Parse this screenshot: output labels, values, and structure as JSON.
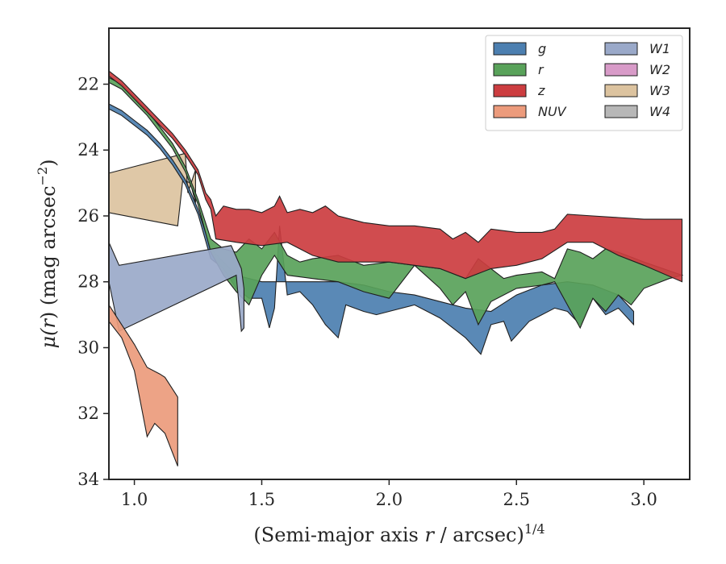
{
  "chart_data": {
    "type": "area",
    "xlabel_main": "(Semi-major axis ",
    "xlabel_var": "r",
    "xlabel_tail": " / arcsec)",
    "xlabel_sup": "1/4",
    "ylabel_main": "μ(",
    "ylabel_var": "r",
    "ylabel_tail": ") (mag arcsec",
    "ylabel_sup": "−2",
    "ylabel_close": ")",
    "xlim": [
      0.9,
      3.18
    ],
    "ylim": [
      34,
      20.3
    ],
    "y_inverted": true,
    "xticks": [
      1.0,
      1.5,
      2.0,
      2.5,
      3.0
    ],
    "xtick_labels": [
      "1.0",
      "1.5",
      "2.0",
      "2.5",
      "3.0"
    ],
    "yticks": [
      22,
      24,
      26,
      28,
      30,
      32,
      34
    ],
    "ytick_labels": [
      "22",
      "24",
      "26",
      "28",
      "30",
      "32",
      "34"
    ],
    "grid": false,
    "legend_position": "top-right",
    "series": [
      {
        "name": "W3",
        "color": "#dcc39f",
        "upper": [
          [
            0.9,
            24.7
          ],
          [
            1.2,
            24.1
          ],
          [
            1.21,
            25.3
          ],
          [
            1.24,
            24.6
          ],
          [
            1.24,
            25.6
          ]
        ],
        "lower": [
          [
            0.9,
            25.9
          ],
          [
            1.17,
            26.3
          ],
          [
            1.19,
            24.9
          ],
          [
            1.22,
            25.0
          ],
          [
            1.24,
            25.6
          ]
        ]
      },
      {
        "name": "g",
        "color": "#4c7fb0",
        "upper": [
          [
            0.9,
            22.6
          ],
          [
            0.95,
            22.8
          ],
          [
            1.0,
            23.1
          ],
          [
            1.05,
            23.4
          ],
          [
            1.1,
            23.8
          ],
          [
            1.15,
            24.3
          ],
          [
            1.2,
            24.9
          ],
          [
            1.25,
            25.8
          ],
          [
            1.3,
            27.0
          ],
          [
            1.35,
            27.4
          ],
          [
            1.4,
            27.8
          ],
          [
            1.5,
            28.0
          ],
          [
            1.6,
            28.0
          ],
          [
            1.8,
            28.0
          ],
          [
            1.9,
            28.1
          ],
          [
            2.0,
            28.3
          ],
          [
            2.1,
            28.4
          ],
          [
            2.2,
            28.6
          ],
          [
            2.3,
            28.8
          ],
          [
            2.4,
            28.9
          ],
          [
            2.5,
            28.4
          ],
          [
            2.6,
            28.1
          ],
          [
            2.7,
            28.0
          ],
          [
            2.8,
            28.1
          ],
          [
            2.9,
            28.4
          ],
          [
            2.96,
            28.9
          ]
        ],
        "lower": [
          [
            0.9,
            22.75
          ],
          [
            0.95,
            22.95
          ],
          [
            1.0,
            23.25
          ],
          [
            1.05,
            23.55
          ],
          [
            1.1,
            23.95
          ],
          [
            1.15,
            24.45
          ],
          [
            1.2,
            25.05
          ],
          [
            1.25,
            25.95
          ],
          [
            1.3,
            27.3
          ],
          [
            1.35,
            27.6
          ],
          [
            1.4,
            28.2
          ],
          [
            1.45,
            28.5
          ],
          [
            1.5,
            28.5
          ],
          [
            1.53,
            29.4
          ],
          [
            1.55,
            28.8
          ],
          [
            1.57,
            26.3
          ],
          [
            1.6,
            28.4
          ],
          [
            1.65,
            28.3
          ],
          [
            1.7,
            28.7
          ],
          [
            1.75,
            29.3
          ],
          [
            1.8,
            29.7
          ],
          [
            1.83,
            28.7
          ],
          [
            1.9,
            28.9
          ],
          [
            1.95,
            29.0
          ],
          [
            2.0,
            28.9
          ],
          [
            2.1,
            28.7
          ],
          [
            2.2,
            29.1
          ],
          [
            2.3,
            29.7
          ],
          [
            2.36,
            30.2
          ],
          [
            2.4,
            29.3
          ],
          [
            2.45,
            29.2
          ],
          [
            2.48,
            29.8
          ],
          [
            2.55,
            29.2
          ],
          [
            2.6,
            29.0
          ],
          [
            2.65,
            28.8
          ],
          [
            2.7,
            28.9
          ],
          [
            2.75,
            29.3
          ],
          [
            2.8,
            28.5
          ],
          [
            2.85,
            29.0
          ],
          [
            2.9,
            28.8
          ],
          [
            2.96,
            29.3
          ]
        ]
      },
      {
        "name": "r",
        "color": "#59a25a",
        "upper": [
          [
            0.9,
            21.8
          ],
          [
            0.95,
            22.0
          ],
          [
            1.0,
            22.4
          ],
          [
            1.05,
            22.8
          ],
          [
            1.1,
            23.3
          ],
          [
            1.15,
            23.8
          ],
          [
            1.2,
            24.5
          ],
          [
            1.25,
            25.5
          ],
          [
            1.3,
            26.7
          ],
          [
            1.35,
            27.0
          ],
          [
            1.4,
            27.1
          ],
          [
            1.45,
            26.7
          ],
          [
            1.5,
            27.0
          ],
          [
            1.55,
            26.5
          ],
          [
            1.6,
            27.2
          ],
          [
            1.65,
            27.4
          ],
          [
            1.7,
            27.3
          ],
          [
            1.8,
            27.2
          ],
          [
            1.9,
            27.5
          ],
          [
            2.0,
            27.4
          ],
          [
            2.1,
            27.5
          ],
          [
            2.2,
            27.6
          ],
          [
            2.3,
            27.9
          ],
          [
            2.35,
            27.3
          ],
          [
            2.4,
            27.6
          ],
          [
            2.45,
            27.9
          ],
          [
            2.5,
            27.8
          ],
          [
            2.6,
            27.7
          ],
          [
            2.65,
            27.9
          ],
          [
            2.7,
            27.0
          ],
          [
            2.75,
            27.1
          ],
          [
            2.8,
            27.3
          ],
          [
            2.85,
            27.0
          ],
          [
            2.9,
            27.1
          ],
          [
            3.0,
            27.4
          ],
          [
            3.15,
            27.8
          ]
        ],
        "lower": [
          [
            0.9,
            21.95
          ],
          [
            0.95,
            22.15
          ],
          [
            1.0,
            22.55
          ],
          [
            1.05,
            22.95
          ],
          [
            1.1,
            23.45
          ],
          [
            1.15,
            23.95
          ],
          [
            1.2,
            24.65
          ],
          [
            1.25,
            25.65
          ],
          [
            1.3,
            27.1
          ],
          [
            1.35,
            27.8
          ],
          [
            1.4,
            28.3
          ],
          [
            1.45,
            28.7
          ],
          [
            1.5,
            27.8
          ],
          [
            1.55,
            27.2
          ],
          [
            1.6,
            27.8
          ],
          [
            1.7,
            27.9
          ],
          [
            1.8,
            28.0
          ],
          [
            1.9,
            28.3
          ],
          [
            2.0,
            28.5
          ],
          [
            2.1,
            27.5
          ],
          [
            2.2,
            28.2
          ],
          [
            2.25,
            28.7
          ],
          [
            2.3,
            28.3
          ],
          [
            2.35,
            29.3
          ],
          [
            2.4,
            28.6
          ],
          [
            2.5,
            28.2
          ],
          [
            2.6,
            28.1
          ],
          [
            2.65,
            28.0
          ],
          [
            2.7,
            28.7
          ],
          [
            2.75,
            29.4
          ],
          [
            2.8,
            28.5
          ],
          [
            2.85,
            28.9
          ],
          [
            2.9,
            28.4
          ],
          [
            2.95,
            28.7
          ],
          [
            3.0,
            28.2
          ],
          [
            3.1,
            27.9
          ],
          [
            3.15,
            27.8
          ]
        ]
      },
      {
        "name": "z",
        "color": "#cc3d40",
        "upper": [
          [
            0.9,
            21.6
          ],
          [
            0.95,
            21.9
          ],
          [
            1.0,
            22.3
          ],
          [
            1.05,
            22.7
          ],
          [
            1.1,
            23.1
          ],
          [
            1.15,
            23.5
          ],
          [
            1.2,
            24.0
          ],
          [
            1.25,
            24.6
          ],
          [
            1.28,
            25.3
          ],
          [
            1.3,
            25.5
          ],
          [
            1.32,
            26.0
          ],
          [
            1.35,
            25.7
          ],
          [
            1.4,
            25.8
          ],
          [
            1.45,
            25.8
          ],
          [
            1.5,
            25.9
          ],
          [
            1.55,
            25.7
          ],
          [
            1.57,
            25.4
          ],
          [
            1.6,
            25.9
          ],
          [
            1.65,
            25.8
          ],
          [
            1.7,
            25.9
          ],
          [
            1.75,
            25.7
          ],
          [
            1.8,
            26.0
          ],
          [
            1.9,
            26.2
          ],
          [
            2.0,
            26.3
          ],
          [
            2.1,
            26.3
          ],
          [
            2.2,
            26.4
          ],
          [
            2.25,
            26.7
          ],
          [
            2.3,
            26.5
          ],
          [
            2.35,
            26.8
          ],
          [
            2.4,
            26.4
          ],
          [
            2.5,
            26.5
          ],
          [
            2.6,
            26.5
          ],
          [
            2.65,
            26.4
          ],
          [
            2.7,
            25.95
          ],
          [
            2.8,
            26.0
          ],
          [
            2.9,
            26.05
          ],
          [
            3.0,
            26.1
          ],
          [
            3.15,
            26.1
          ]
        ],
        "lower": [
          [
            0.9,
            21.75
          ],
          [
            0.95,
            22.05
          ],
          [
            1.0,
            22.45
          ],
          [
            1.05,
            22.85
          ],
          [
            1.1,
            23.25
          ],
          [
            1.15,
            23.65
          ],
          [
            1.2,
            24.15
          ],
          [
            1.25,
            24.75
          ],
          [
            1.28,
            25.5
          ],
          [
            1.3,
            25.8
          ],
          [
            1.32,
            26.7
          ],
          [
            1.4,
            26.8
          ],
          [
            1.5,
            26.9
          ],
          [
            1.6,
            26.8
          ],
          [
            1.7,
            27.2
          ],
          [
            1.8,
            27.4
          ],
          [
            1.9,
            27.4
          ],
          [
            2.0,
            27.4
          ],
          [
            2.1,
            27.5
          ],
          [
            2.2,
            27.6
          ],
          [
            2.3,
            27.9
          ],
          [
            2.4,
            27.6
          ],
          [
            2.5,
            27.5
          ],
          [
            2.6,
            27.3
          ],
          [
            2.7,
            26.8
          ],
          [
            2.8,
            26.8
          ],
          [
            2.9,
            27.2
          ],
          [
            3.0,
            27.5
          ],
          [
            3.15,
            28.0
          ]
        ]
      },
      {
        "name": "W1",
        "color": "#9aa9c9",
        "upper": [
          [
            0.9,
            26.8
          ],
          [
            0.94,
            27.5
          ],
          [
            1.38,
            26.9
          ],
          [
            1.42,
            27.6
          ],
          [
            1.43,
            28.2
          ],
          [
            1.43,
            29.4
          ]
        ],
        "lower": [
          [
            0.9,
            28.0
          ],
          [
            0.94,
            29.5
          ],
          [
            1.4,
            27.8
          ],
          [
            1.42,
            29.5
          ],
          [
            1.43,
            29.4
          ]
        ]
      },
      {
        "name": "NUV",
        "color": "#ec9b7c",
        "upper": [
          [
            0.9,
            28.7
          ],
          [
            0.95,
            29.3
          ],
          [
            1.0,
            29.9
          ],
          [
            1.05,
            30.6
          ],
          [
            1.1,
            30.8
          ],
          [
            1.12,
            30.9
          ],
          [
            1.17,
            31.5
          ],
          [
            1.17,
            33.6
          ]
        ],
        "lower": [
          [
            0.9,
            29.2
          ],
          [
            0.95,
            29.7
          ],
          [
            1.0,
            30.7
          ],
          [
            1.05,
            32.7
          ],
          [
            1.08,
            32.3
          ],
          [
            1.12,
            32.6
          ],
          [
            1.17,
            33.6
          ]
        ]
      }
    ],
    "legend_entries": [
      {
        "name": "g",
        "color": "#4c7fb0"
      },
      {
        "name": "r",
        "color": "#59a25a"
      },
      {
        "name": "z",
        "color": "#cc3d40"
      },
      {
        "name": "NUV",
        "color": "#ec9b7c"
      },
      {
        "name": "W1",
        "color": "#9aa9c9"
      },
      {
        "name": "W2",
        "color": "#d89bc8"
      },
      {
        "name": "W3",
        "color": "#dcc39f"
      },
      {
        "name": "W4",
        "color": "#b7b7b7"
      }
    ]
  }
}
